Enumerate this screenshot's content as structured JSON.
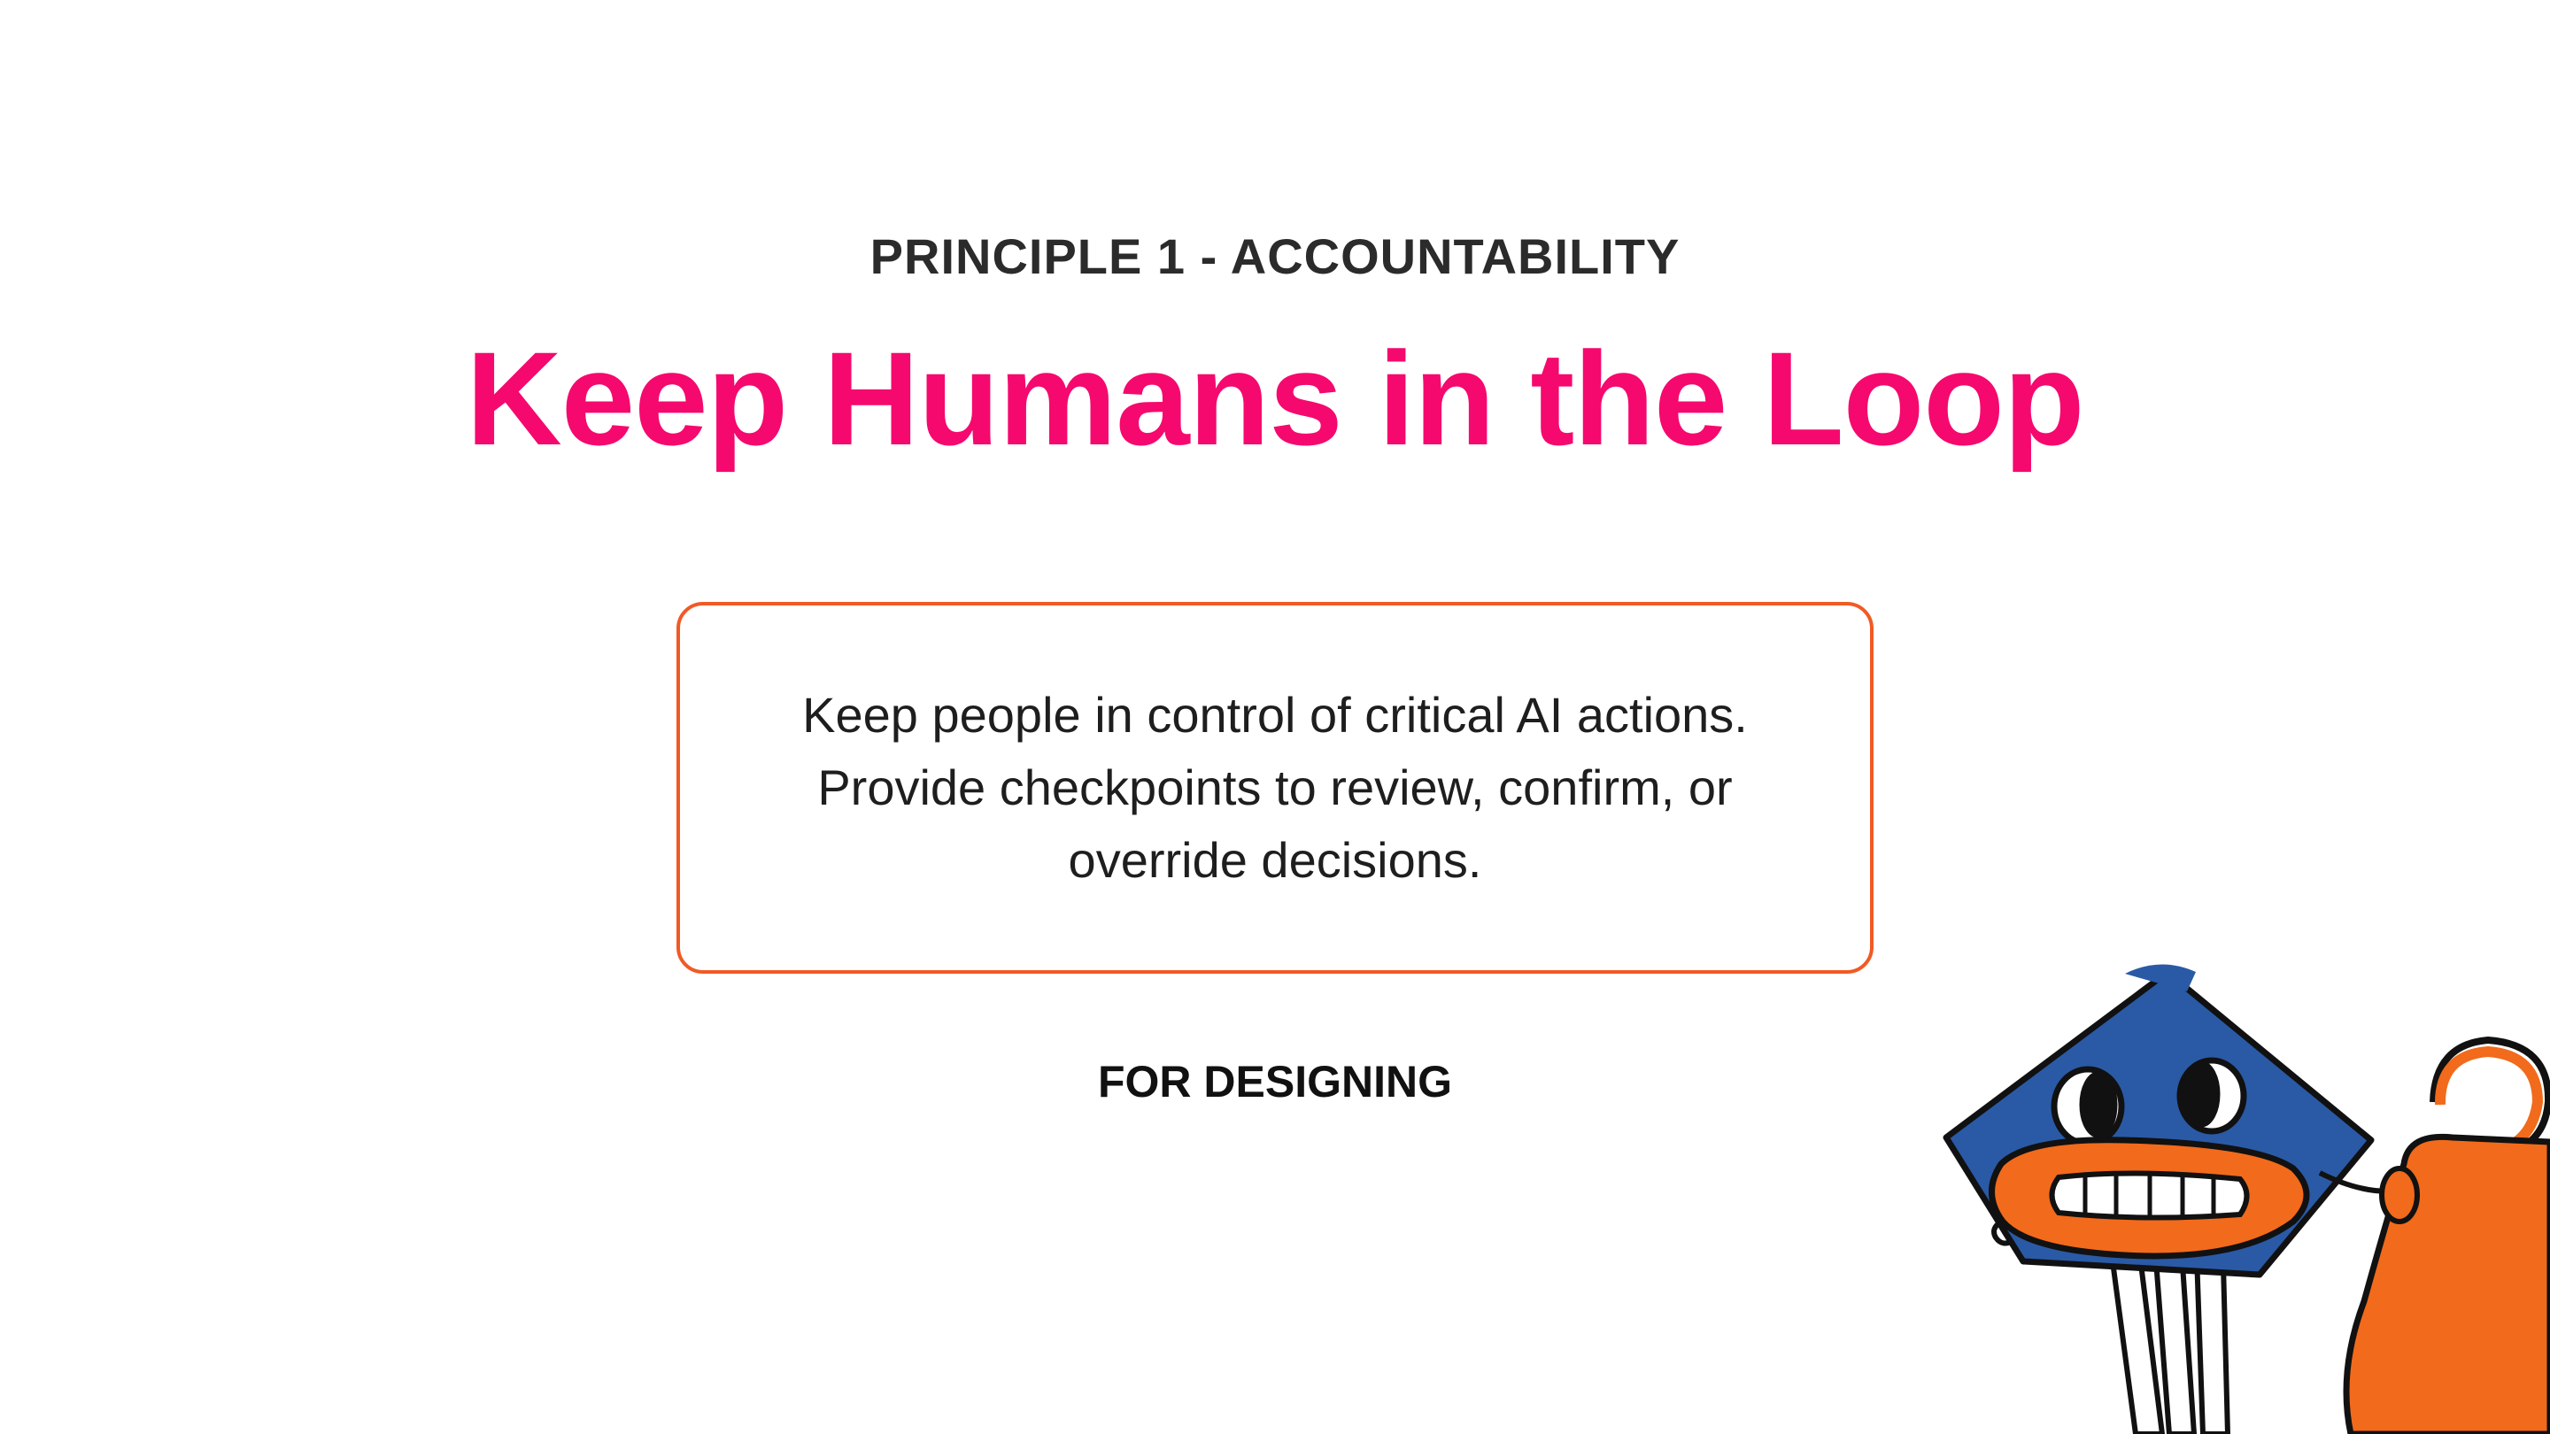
{
  "slide": {
    "eyebrow": "PRINCIPLE 1 - ACCOUNTABILITY",
    "title": "Keep Humans in the Loop",
    "card": {
      "lines": [
        "Keep people in control of critical AI actions.",
        "Provide checkpoints to review, confirm, or",
        "override decisions."
      ]
    },
    "footer_label": "FOR DESIGNING"
  },
  "colors": {
    "title": "#f5096e",
    "card_border": "#f15a24",
    "eyebrow": "#2b2b2b",
    "mascot_blue": "#2a5aa6",
    "mascot_orange": "#f26a1b"
  },
  "illustration": {
    "icon": "mascot-with-watering-can-icon"
  }
}
